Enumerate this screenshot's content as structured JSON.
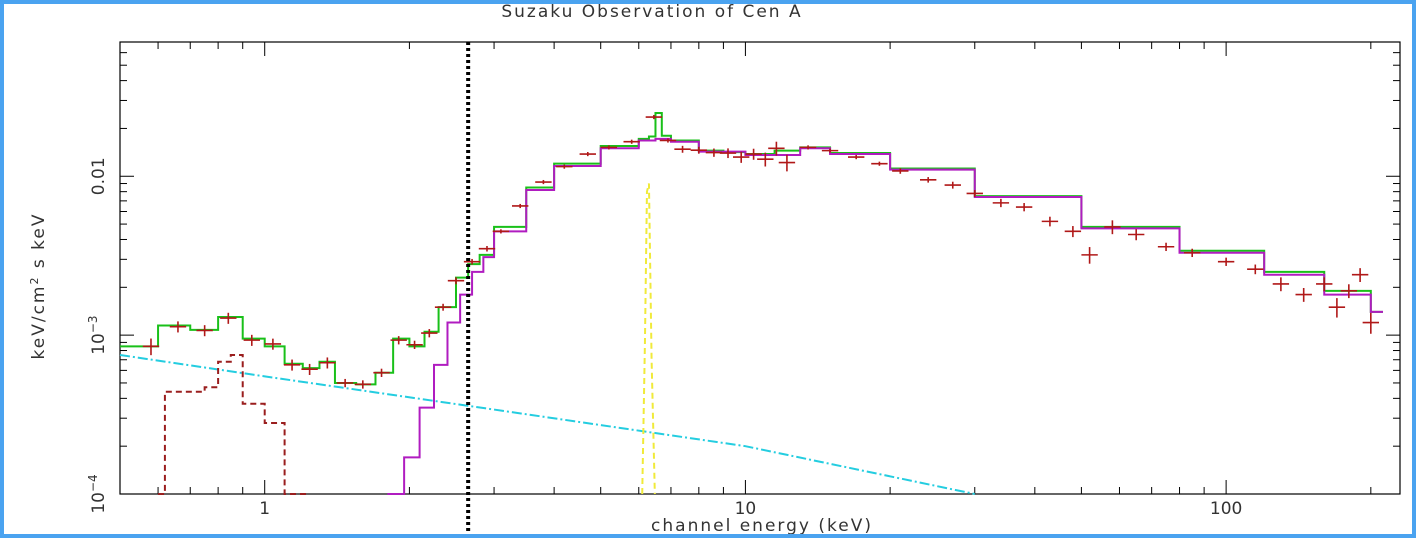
{
  "chart_data": {
    "type": "line",
    "title": "Suzaku Observation of Cen A",
    "xlabel": "channel energy (keV)",
    "ylabel": "keV/cm^2 s keV",
    "xscale": "log",
    "yscale": "log",
    "xlim": [
      0.5,
      230
    ],
    "ylim": [
      0.0001,
      0.07
    ],
    "x_ticks": [
      {
        "value": 1,
        "label": "1"
      },
      {
        "value": 10,
        "label": "10"
      },
      {
        "value": 100,
        "label": "100"
      }
    ],
    "y_ticks": [
      {
        "value": 0.0001,
        "base": "10",
        "exp": "−4"
      },
      {
        "value": 0.001,
        "base": "10",
        "exp": "−3"
      },
      {
        "value": 0.01,
        "base": "0.01",
        "exp": ""
      }
    ],
    "vline_x": 2.65,
    "colors": {
      "data": "#b01818",
      "total_model": "#19c019",
      "absorbed_powerlaw": "#b01cc0",
      "scattered_powerlaw": "#24cde0",
      "iron_line": "#f0ea3a",
      "soft_components": "#9a1e1e",
      "vline": "#000000"
    },
    "series": [
      {
        "key": "total_model",
        "color": "#19c019",
        "style": "step",
        "x": [
          0.5,
          0.6,
          0.7,
          0.8,
          0.9,
          1.0,
          1.1,
          1.2,
          1.3,
          1.4,
          1.55,
          1.7,
          1.85,
          2.0,
          2.15,
          2.3,
          2.5,
          2.65,
          2.8,
          3.0,
          3.5,
          4.0,
          5.0,
          6.0,
          6.3,
          6.5,
          6.7,
          7.0,
          8.0,
          9.0,
          10.0,
          11.5,
          13.0,
          15.0,
          20.0,
          30.0,
          50.0,
          80.0,
          120.0,
          160.0,
          200.0
        ],
        "y": [
          0.00085,
          0.00115,
          0.00108,
          0.0013,
          0.00095,
          0.00085,
          0.00066,
          0.00062,
          0.00068,
          0.0005,
          0.00049,
          0.00058,
          0.00095,
          0.00085,
          0.00105,
          0.0015,
          0.0023,
          0.0028,
          0.0032,
          0.0048,
          0.0085,
          0.012,
          0.0155,
          0.0172,
          0.0178,
          0.025,
          0.018,
          0.0168,
          0.0145,
          0.0142,
          0.0138,
          0.0145,
          0.0152,
          0.014,
          0.0112,
          0.0075,
          0.0048,
          0.0034,
          0.0025,
          0.0019,
          0.0014
        ]
      },
      {
        "key": "absorbed_powerlaw",
        "color": "#b01cc0",
        "style": "step",
        "x": [
          1.8,
          1.95,
          2.1,
          2.25,
          2.4,
          2.55,
          2.7,
          2.85,
          3.0,
          3.5,
          4.0,
          5.0,
          6.0,
          6.5,
          7.0,
          8.0,
          10.0,
          13.0,
          15.0,
          20.0,
          30.0,
          50.0,
          80.0,
          120.0,
          160.0,
          200.0
        ],
        "y": [
          0.0001,
          0.00017,
          0.00035,
          0.00065,
          0.0012,
          0.0018,
          0.0025,
          0.0031,
          0.0045,
          0.0082,
          0.0116,
          0.015,
          0.0168,
          0.0172,
          0.0165,
          0.0143,
          0.0136,
          0.015,
          0.0138,
          0.011,
          0.0074,
          0.0047,
          0.0033,
          0.0024,
          0.0018,
          0.0014
        ]
      },
      {
        "key": "scattered_powerlaw",
        "color": "#24cde0",
        "style": "dashdot",
        "x": [
          0.5,
          1.0,
          3.0,
          10.0,
          30.0
        ],
        "y": [
          0.00075,
          0.00055,
          0.00034,
          0.0002,
          0.0001
        ]
      },
      {
        "key": "soft_components",
        "color": "#9a1e1e",
        "style": "dashed-step",
        "x": [
          0.6,
          0.62,
          0.75,
          0.8,
          0.85,
          0.9,
          1.0,
          1.1,
          1.15
        ],
        "y": [
          0.0001,
          0.00044,
          0.00047,
          0.00068,
          0.00075,
          0.00037,
          0.00028,
          0.0001,
          0.0001
        ]
      },
      {
        "key": "iron_line",
        "color": "#f0ea3a",
        "style": "dashed",
        "x": [
          6.1,
          6.18,
          6.24,
          6.3,
          6.38,
          6.48
        ],
        "y": [
          0.0001,
          0.0009,
          0.008,
          0.009,
          0.0007,
          0.0001
        ]
      }
    ],
    "data_points": [
      {
        "x": 0.58,
        "y": 0.00085,
        "err": 0.12
      },
      {
        "x": 0.66,
        "y": 0.00113,
        "err": 0.08
      },
      {
        "x": 0.75,
        "y": 0.00107,
        "err": 0.08
      },
      {
        "x": 0.84,
        "y": 0.00128,
        "err": 0.08
      },
      {
        "x": 0.94,
        "y": 0.00093,
        "err": 0.08
      },
      {
        "x": 1.04,
        "y": 0.00088,
        "err": 0.08
      },
      {
        "x": 1.14,
        "y": 0.00065,
        "err": 0.08
      },
      {
        "x": 1.24,
        "y": 0.00061,
        "err": 0.08
      },
      {
        "x": 1.35,
        "y": 0.00067,
        "err": 0.08
      },
      {
        "x": 1.47,
        "y": 0.0005,
        "err": 0.06
      },
      {
        "x": 1.6,
        "y": 0.00049,
        "err": 0.06
      },
      {
        "x": 1.75,
        "y": 0.00058,
        "err": 0.06
      },
      {
        "x": 1.9,
        "y": 0.00093,
        "err": 0.06
      },
      {
        "x": 2.05,
        "y": 0.00087,
        "err": 0.06
      },
      {
        "x": 2.2,
        "y": 0.00103,
        "err": 0.06
      },
      {
        "x": 2.35,
        "y": 0.0015,
        "err": 0.05
      },
      {
        "x": 2.5,
        "y": 0.0022,
        "err": 0.05
      },
      {
        "x": 2.7,
        "y": 0.0029,
        "err": 0.04
      },
      {
        "x": 2.9,
        "y": 0.0035,
        "err": 0.04
      },
      {
        "x": 3.1,
        "y": 0.0045,
        "err": 0.03
      },
      {
        "x": 3.4,
        "y": 0.0065,
        "err": 0.03
      },
      {
        "x": 3.8,
        "y": 0.0092,
        "err": 0.03
      },
      {
        "x": 4.2,
        "y": 0.0115,
        "err": 0.03
      },
      {
        "x": 4.7,
        "y": 0.0138,
        "err": 0.03
      },
      {
        "x": 5.2,
        "y": 0.0152,
        "err": 0.03
      },
      {
        "x": 5.8,
        "y": 0.0165,
        "err": 0.03
      },
      {
        "x": 6.45,
        "y": 0.0236,
        "err": 0.03
      },
      {
        "x": 6.9,
        "y": 0.0168,
        "err": 0.03
      },
      {
        "x": 7.4,
        "y": 0.0148,
        "err": 0.05
      },
      {
        "x": 8.0,
        "y": 0.0146,
        "err": 0.05
      },
      {
        "x": 8.6,
        "y": 0.0141,
        "err": 0.06
      },
      {
        "x": 9.2,
        "y": 0.014,
        "err": 0.07
      },
      {
        "x": 9.8,
        "y": 0.0132,
        "err": 0.08
      },
      {
        "x": 10.4,
        "y": 0.0138,
        "err": 0.08
      },
      {
        "x": 11.0,
        "y": 0.0128,
        "err": 0.1
      },
      {
        "x": 11.6,
        "y": 0.015,
        "err": 0.1
      },
      {
        "x": 12.2,
        "y": 0.0122,
        "err": 0.12
      },
      {
        "x": 13.5,
        "y": 0.0152,
        "err": 0.03
      },
      {
        "x": 15.0,
        "y": 0.0145,
        "err": 0.03
      },
      {
        "x": 17.0,
        "y": 0.0132,
        "err": 0.03
      },
      {
        "x": 19.0,
        "y": 0.012,
        "err": 0.03
      },
      {
        "x": 21.0,
        "y": 0.0108,
        "err": 0.04
      },
      {
        "x": 24.0,
        "y": 0.0095,
        "err": 0.04
      },
      {
        "x": 27.0,
        "y": 0.0088,
        "err": 0.05
      },
      {
        "x": 30.0,
        "y": 0.0078,
        "err": 0.05
      },
      {
        "x": 34.0,
        "y": 0.0068,
        "err": 0.06
      },
      {
        "x": 38.0,
        "y": 0.0064,
        "err": 0.06
      },
      {
        "x": 43.0,
        "y": 0.0052,
        "err": 0.07
      },
      {
        "x": 48.0,
        "y": 0.0045,
        "err": 0.08
      },
      {
        "x": 52.0,
        "y": 0.0032,
        "err": 0.12
      },
      {
        "x": 58.0,
        "y": 0.0048,
        "err": 0.1
      },
      {
        "x": 65.0,
        "y": 0.0043,
        "err": 0.08
      },
      {
        "x": 75.0,
        "y": 0.0036,
        "err": 0.06
      },
      {
        "x": 85.0,
        "y": 0.0033,
        "err": 0.06
      },
      {
        "x": 100.0,
        "y": 0.0029,
        "err": 0.06
      },
      {
        "x": 115.0,
        "y": 0.0026,
        "err": 0.07
      },
      {
        "x": 130.0,
        "y": 0.0021,
        "err": 0.1
      },
      {
        "x": 145.0,
        "y": 0.0018,
        "err": 0.1
      },
      {
        "x": 160.0,
        "y": 0.0021,
        "err": 0.1
      },
      {
        "x": 170.0,
        "y": 0.0015,
        "err": 0.14
      },
      {
        "x": 180.0,
        "y": 0.0019,
        "err": 0.1
      },
      {
        "x": 190.0,
        "y": 0.0024,
        "err": 0.1
      },
      {
        "x": 200.0,
        "y": 0.0012,
        "err": 0.15
      }
    ]
  }
}
